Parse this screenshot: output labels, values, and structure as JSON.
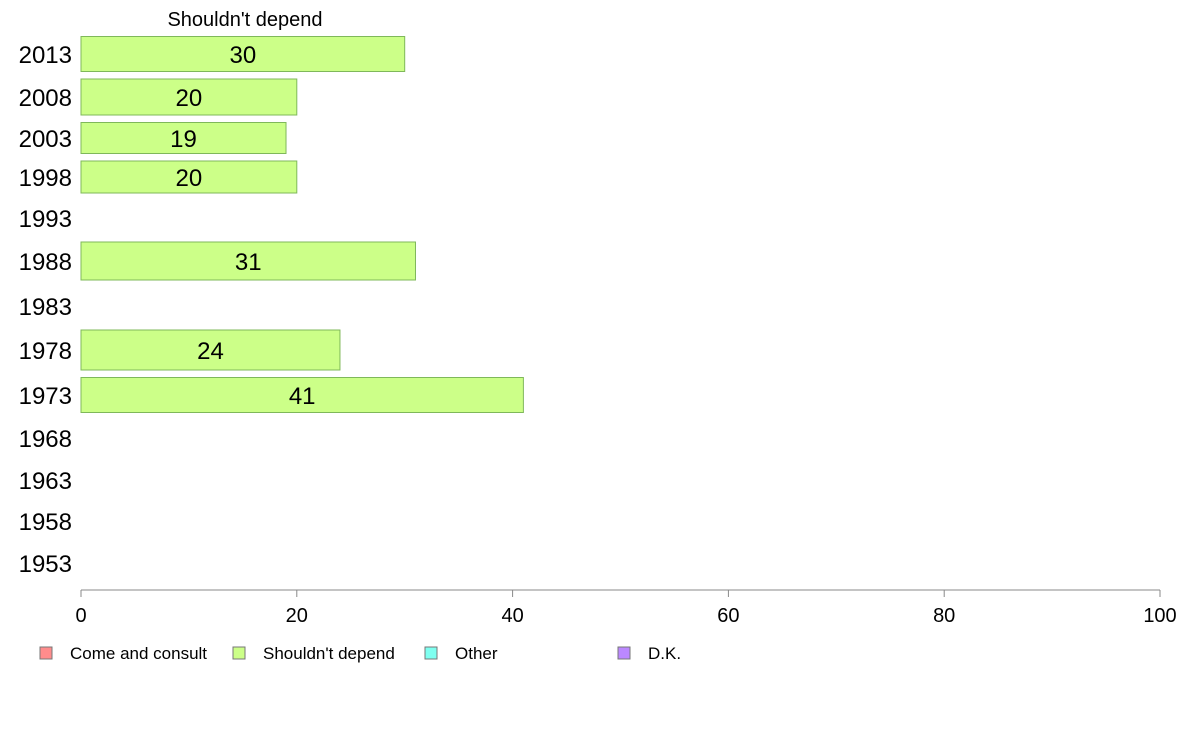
{
  "chart_data": {
    "type": "bar",
    "orientation": "horizontal",
    "title": "Shouldn't depend",
    "categories": [
      "2013",
      "2008",
      "2003",
      "1998",
      "1993",
      "1988",
      "1983",
      "1978",
      "1973",
      "1968",
      "1963",
      "1958",
      "1953"
    ],
    "series": [
      {
        "name": "Shouldn't depend",
        "color": "#ccff88",
        "values": [
          30,
          20,
          19,
          20,
          null,
          31,
          null,
          24,
          41,
          null,
          null,
          null,
          null
        ],
        "labels": [
          "30",
          "20",
          "19",
          "20",
          "",
          "31",
          "",
          "24",
          "41",
          "",
          "",
          "",
          ""
        ]
      }
    ],
    "xlim": [
      0,
      100
    ],
    "xticks": [
      0,
      20,
      40,
      60,
      80,
      100
    ],
    "grid": false,
    "legend": {
      "position": "bottom",
      "entries": [
        {
          "label": "Come and consult",
          "color": "#ff8c8c"
        },
        {
          "label": "Shouldn't depend",
          "color": "#ccff88"
        },
        {
          "label": "Other",
          "color": "#7ffff0"
        },
        {
          "label": "D.K.",
          "color": "#bb88ff"
        }
      ]
    }
  }
}
